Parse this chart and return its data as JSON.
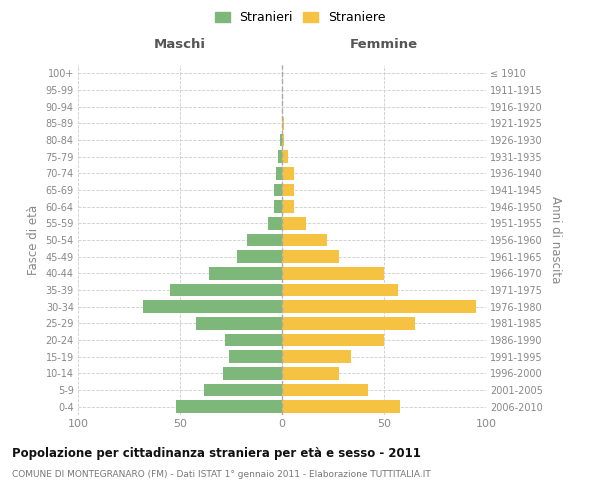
{
  "age_groups": [
    "100+",
    "95-99",
    "90-94",
    "85-89",
    "80-84",
    "75-79",
    "70-74",
    "65-69",
    "60-64",
    "55-59",
    "50-54",
    "45-49",
    "40-44",
    "35-39",
    "30-34",
    "25-29",
    "20-24",
    "15-19",
    "10-14",
    "5-9",
    "0-4"
  ],
  "birth_years": [
    "≤ 1910",
    "1911-1915",
    "1916-1920",
    "1921-1925",
    "1926-1930",
    "1931-1935",
    "1936-1940",
    "1941-1945",
    "1946-1950",
    "1951-1955",
    "1956-1960",
    "1961-1965",
    "1966-1970",
    "1971-1975",
    "1976-1980",
    "1981-1985",
    "1986-1990",
    "1991-1995",
    "1996-2000",
    "2001-2005",
    "2006-2010"
  ],
  "maschi": [
    0,
    0,
    0,
    0,
    1,
    2,
    3,
    4,
    4,
    7,
    17,
    22,
    36,
    55,
    68,
    42,
    28,
    26,
    29,
    38,
    52
  ],
  "femmine": [
    0,
    0,
    0,
    1,
    1,
    3,
    6,
    6,
    6,
    12,
    22,
    28,
    50,
    57,
    95,
    65,
    50,
    34,
    28,
    42,
    58
  ],
  "maschi_color": "#7db87a",
  "femmine_color": "#f5c242",
  "title": "Popolazione per cittadinanza straniera per età e sesso - 2011",
  "subtitle": "COMUNE DI MONTEGRANARO (FM) - Dati ISTAT 1° gennaio 2011 - Elaborazione TUTTITALIA.IT",
  "ylabel_left": "Fasce di età",
  "ylabel_right": "Anni di nascita",
  "xlabel_left": "Maschi",
  "xlabel_right": "Femmine",
  "legend_maschi": "Stranieri",
  "legend_femmine": "Straniere",
  "xlim": 100,
  "bar_height": 0.75,
  "bg_color": "#ffffff",
  "grid_color": "#cccccc",
  "axis_label_color": "#888888",
  "header_color": "#555555",
  "title_color": "#111111",
  "subtitle_color": "#777777",
  "center_line_color": "#aaaaaa"
}
